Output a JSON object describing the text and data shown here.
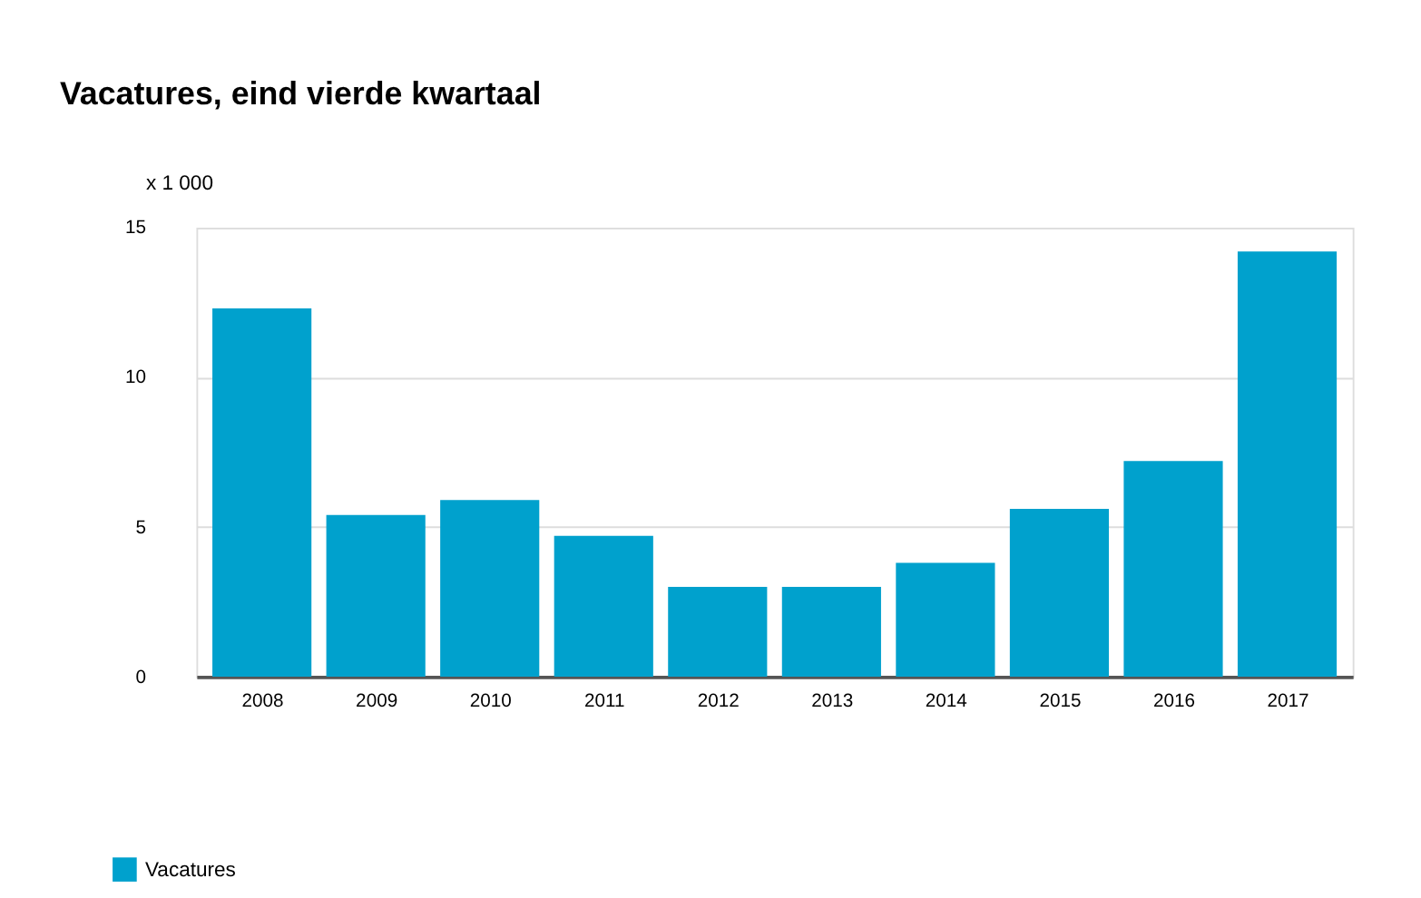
{
  "chart_data": {
    "type": "bar",
    "title": "Vacatures, eind vierde kwartaal",
    "ylabel": "x 1 000",
    "categories": [
      "2008",
      "2009",
      "2010",
      "2011",
      "2012",
      "2013",
      "2014",
      "2015",
      "2016",
      "2017"
    ],
    "series": [
      {
        "name": "Vacatures",
        "color": "#00a1cd",
        "values": [
          12.3,
          5.4,
          5.9,
          4.7,
          3.0,
          3.0,
          3.8,
          5.6,
          7.2,
          14.2
        ]
      }
    ],
    "ylim": [
      0,
      15
    ],
    "yticks": [
      0,
      5,
      10,
      15
    ],
    "grid": "y",
    "legend": "bottom left"
  }
}
